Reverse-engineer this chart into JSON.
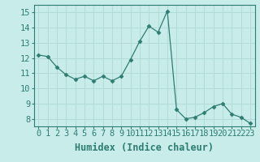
{
  "x": [
    0,
    1,
    2,
    3,
    4,
    5,
    6,
    7,
    8,
    9,
    10,
    11,
    12,
    13,
    14,
    15,
    16,
    17,
    18,
    19,
    20,
    21,
    22,
    23
  ],
  "y": [
    12.2,
    12.1,
    11.4,
    10.9,
    10.6,
    10.8,
    10.5,
    10.8,
    10.5,
    10.8,
    11.9,
    13.1,
    14.1,
    13.7,
    15.1,
    8.6,
    8.0,
    8.1,
    8.4,
    8.8,
    9.0,
    8.3,
    8.1,
    7.7
  ],
  "line_color": "#2e7d72",
  "marker": "D",
  "marker_size": 2.5,
  "bg_color": "#c8ecea",
  "grid_color": "#aed8d4",
  "xlabel": "Humidex (Indice chaleur)",
  "ylim": [
    7.5,
    15.5
  ],
  "xlim": [
    -0.5,
    23.5
  ],
  "yticks": [
    8,
    9,
    10,
    11,
    12,
    13,
    14,
    15
  ],
  "xticks": [
    0,
    1,
    2,
    3,
    4,
    5,
    6,
    7,
    8,
    9,
    10,
    11,
    12,
    13,
    14,
    15,
    16,
    17,
    18,
    19,
    20,
    21,
    22,
    23
  ],
  "tick_color": "#2e7d72",
  "label_color": "#2e7d72",
  "font_size": 7.5,
  "xlabel_fontsize": 8.5
}
